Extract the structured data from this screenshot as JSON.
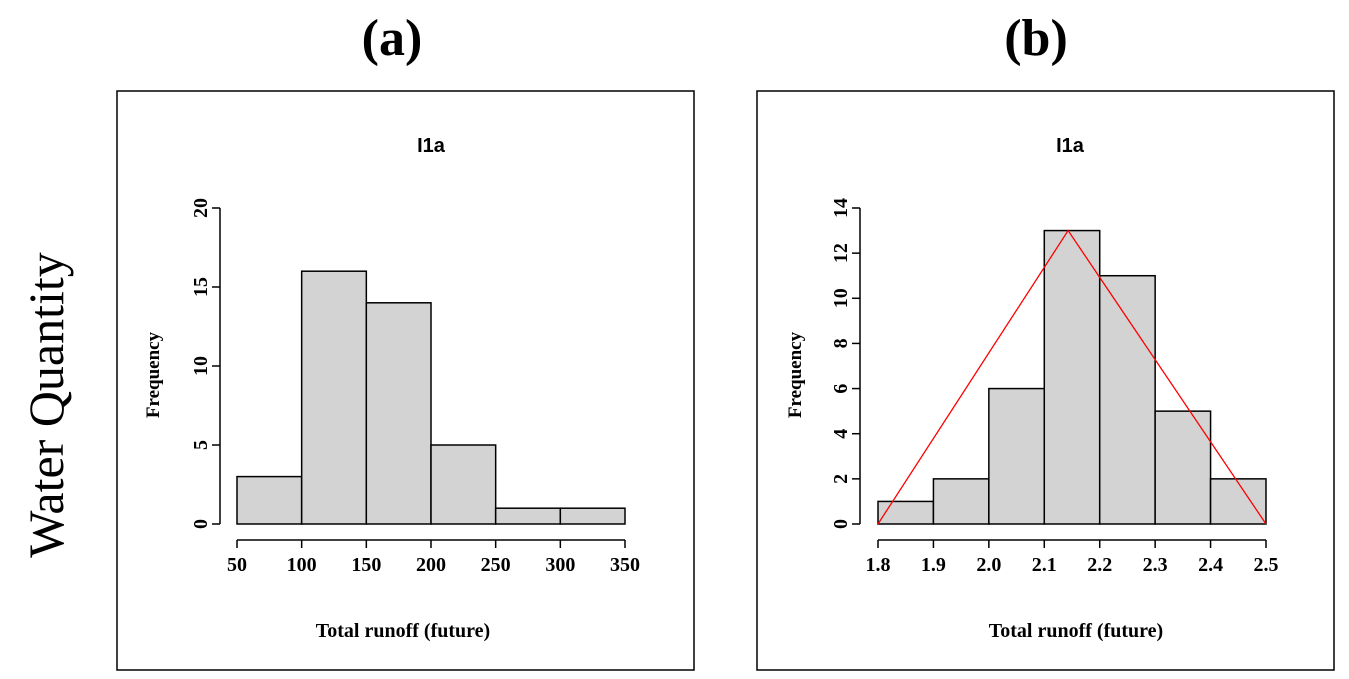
{
  "row_label": "Water Quantity",
  "colors": {
    "bar_fill": "#d3d3d3",
    "bar_stroke": "#000000",
    "triangle": "#ff0000",
    "frame": "#000000"
  },
  "chart_data": [
    {
      "type": "bar",
      "panel_label": "(a)",
      "title": "I1a",
      "xlabel": "Total runoff (future)",
      "ylabel": "Frequency",
      "bins": [
        [
          50,
          100
        ],
        [
          100,
          150
        ],
        [
          150,
          200
        ],
        [
          200,
          250
        ],
        [
          250,
          300
        ],
        [
          300,
          350
        ]
      ],
      "values": [
        3,
        16,
        14,
        5,
        1,
        1
      ],
      "xlim": [
        50,
        350
      ],
      "ylim": [
        0,
        20
      ],
      "x_ticks": [
        50,
        100,
        150,
        200,
        250,
        300,
        350
      ],
      "x_tick_labels": [
        "50",
        "100",
        "150",
        "200",
        "250",
        "300",
        "350"
      ],
      "y_ticks": [
        0,
        5,
        10,
        15,
        20
      ],
      "y_tick_labels": [
        "0",
        "5",
        "10",
        "15",
        "20"
      ]
    },
    {
      "type": "bar",
      "panel_label": "(b)",
      "title": "I1a",
      "xlabel": "Total runoff (future)",
      "ylabel": "Frequency",
      "bins": [
        [
          1.8,
          1.9
        ],
        [
          1.9,
          2.0
        ],
        [
          2.0,
          2.1
        ],
        [
          2.1,
          2.2
        ],
        [
          2.2,
          2.3
        ],
        [
          2.3,
          2.4
        ],
        [
          2.4,
          2.5
        ]
      ],
      "values": [
        1,
        2,
        6,
        13,
        11,
        5,
        2
      ],
      "xlim": [
        1.8,
        2.5
      ],
      "ylim": [
        0,
        14
      ],
      "x_ticks": [
        1.8,
        1.9,
        2.0,
        2.1,
        2.2,
        2.3,
        2.4,
        2.5
      ],
      "x_tick_labels": [
        "1.8",
        "1.9",
        "2.0",
        "2.1",
        "2.2",
        "2.3",
        "2.4",
        "2.5"
      ],
      "y_ticks": [
        0,
        2,
        4,
        6,
        8,
        10,
        12,
        14
      ],
      "y_tick_labels": [
        "0",
        "2",
        "4",
        "6",
        "8",
        "10",
        "12",
        "14"
      ],
      "overlay": {
        "type": "triangle",
        "points": [
          [
            1.8,
            0
          ],
          [
            2.143,
            13
          ],
          [
            2.5,
            0
          ]
        ]
      }
    }
  ]
}
